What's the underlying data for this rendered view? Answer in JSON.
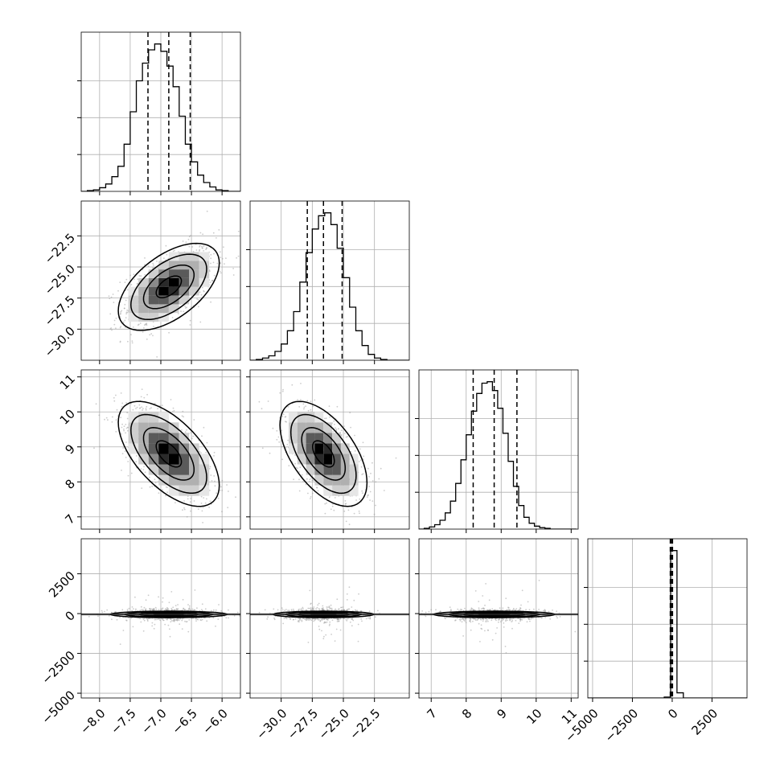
{
  "chart_data": {
    "type": "corner",
    "parameters": [
      {
        "range": [
          -8.3,
          -5.7
        ],
        "ticks": [
          -8.0,
          -7.5,
          -7.0,
          -6.5,
          -6.0
        ],
        "tick_labels": [
          "−8.0",
          "−7.5",
          "−7.0",
          "−6.5",
          "−6.0"
        ],
        "quantiles": [
          -7.21,
          -6.87,
          -6.52
        ],
        "center": -6.87,
        "sd": 0.33
      },
      {
        "range": [
          -32.5,
          -19.7
        ],
        "ticks": [
          -30.0,
          -27.5,
          -25.0,
          -22.5
        ],
        "tick_labels": [
          "−30.0",
          "−27.5",
          "−25.0",
          "−22.5"
        ],
        "quantiles": [
          -27.9,
          -26.6,
          -25.1
        ],
        "center": -26.6,
        "sd": 1.4
      },
      {
        "range": [
          6.65,
          11.2
        ],
        "ticks": [
          7,
          8,
          9,
          10,
          11
        ],
        "tick_labels": [
          "7",
          "8",
          "9",
          "10",
          "11"
        ],
        "quantiles": [
          8.2,
          8.8,
          9.45
        ],
        "center": 8.8,
        "sd": 0.6
      },
      {
        "range": [
          -5300,
          4700
        ],
        "ticks": [
          -5000,
          -2500,
          0,
          2500
        ],
        "tick_labels": [
          "−5000",
          "−2500",
          "0",
          "2500"
        ],
        "quantiles": [
          -120,
          -50,
          20
        ],
        "center": -50,
        "sd": 330
      }
    ],
    "histograms": [
      {
        "param": 0,
        "bin_edges": [
          -8.3,
          -8.2,
          -8.1,
          -8.0,
          -7.9,
          -7.8,
          -7.7,
          -7.6,
          -7.5,
          -7.4,
          -7.3,
          -7.2,
          -7.1,
          -7.0,
          -6.9,
          -6.8,
          -6.7,
          -6.6,
          -6.5,
          -6.4,
          -6.3,
          -6.2,
          -6.1,
          -6.0,
          -5.9,
          -5.8,
          -5.7
        ],
        "counts": [
          0,
          0.5,
          1,
          2.5,
          5,
          10,
          17,
          32,
          54,
          75,
          87,
          96,
          100,
          95,
          85,
          71,
          51,
          32,
          20,
          11,
          6,
          3,
          1,
          0.5,
          0,
          0
        ],
        "ylim": [
          0,
          108
        ]
      },
      {
        "param": 1,
        "bin_edges": [
          -32.5,
          -32.0,
          -31.5,
          -31.0,
          -30.5,
          -30.0,
          -29.5,
          -29.0,
          -28.5,
          -28.0,
          -27.5,
          -27.0,
          -26.5,
          -26.0,
          -25.5,
          -25.0,
          -24.5,
          -24.0,
          -23.5,
          -23.0,
          -22.5,
          -22.0,
          -21.5,
          -21.0,
          -20.5,
          -20.0,
          -19.5
        ],
        "counts": [
          0,
          0.5,
          1.5,
          3,
          6,
          11,
          20,
          33,
          53,
          73,
          89,
          98,
          100,
          92,
          76,
          56,
          36,
          20,
          10,
          4,
          1.5,
          0.5,
          0,
          0,
          0,
          0
        ],
        "ylim": [
          0,
          108
        ]
      },
      {
        "param": 2,
        "bin_edges": [
          6.65,
          6.8,
          6.95,
          7.1,
          7.25,
          7.4,
          7.55,
          7.7,
          7.85,
          8.0,
          8.15,
          8.3,
          8.45,
          8.6,
          8.75,
          8.9,
          9.05,
          9.2,
          9.35,
          9.5,
          9.65,
          9.8,
          9.95,
          10.1,
          10.25,
          10.4,
          10.55,
          10.7,
          10.85,
          11.0,
          11.15
        ],
        "counts": [
          0,
          0.5,
          1.5,
          3,
          6,
          11,
          19,
          31,
          47,
          64,
          80,
          92,
          99,
          100,
          94,
          82,
          65,
          46,
          29,
          16,
          8,
          4,
          2,
          1,
          0.5,
          0,
          0,
          0,
          0,
          0
        ],
        "ylim": [
          0,
          108
        ]
      },
      {
        "param": 3,
        "bin_edges": [
          -5300,
          -4900,
          -4500,
          -4100,
          -3700,
          -3300,
          -2900,
          -2500,
          -2100,
          -1700,
          -1300,
          -900,
          -500,
          -100,
          300,
          700,
          1100,
          1500,
          1900,
          2300,
          2700,
          3100,
          3500,
          3900,
          4300,
          4700
        ],
        "counts": [
          0,
          0,
          0,
          0,
          0,
          0,
          0,
          0,
          0,
          0,
          0,
          0,
          0.6,
          100,
          3.5,
          0,
          0,
          0,
          0,
          0,
          0,
          0,
          0,
          0,
          0
        ],
        "ylim": [
          0,
          108
        ]
      }
    ],
    "pairs": [
      {
        "x": 0,
        "y": 1,
        "correlation": 0.55
      },
      {
        "x": 0,
        "y": 2,
        "correlation": -0.6
      },
      {
        "x": 1,
        "y": 2,
        "correlation": -0.55
      },
      {
        "x": 0,
        "y": 3,
        "correlation": 0.0
      },
      {
        "x": 1,
        "y": 3,
        "correlation": 0.0
      },
      {
        "x": 2,
        "y": 3,
        "correlation": 0.0
      }
    ],
    "contour_levels_sigma": [
      0.5,
      1.0,
      1.5,
      2.0
    ],
    "grid": true,
    "colors": {
      "line": "#000000",
      "grid": "#b0b0b0",
      "points": "#9a9a9a",
      "frame": "#000000"
    }
  }
}
